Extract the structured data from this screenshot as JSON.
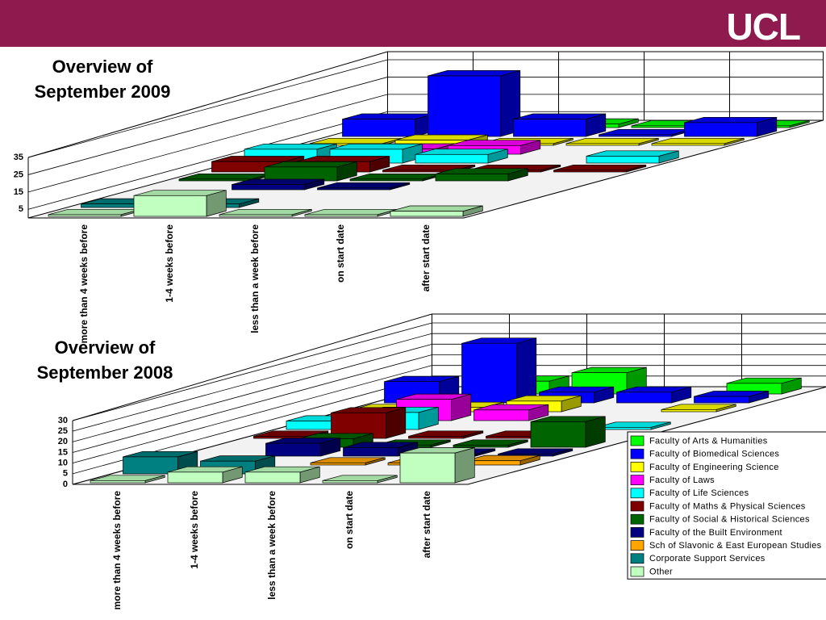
{
  "header": {
    "logo": "UCL"
  },
  "chart_data": [
    {
      "type": "bar3d",
      "title": "Overview of September 2009",
      "categories": [
        "more than 4 weeks before",
        "1-4 weeks before",
        "less than a week before",
        "on start date",
        "after start date"
      ],
      "ylim": [
        0,
        35
      ],
      "yticks": [
        5,
        15,
        25,
        35
      ],
      "series": [
        {
          "name": "Faculty of Arts & Humanities",
          "color": "#00ff00",
          "values": [
            1,
            3,
            2,
            1,
            1
          ]
        },
        {
          "name": "Faculty of Biomedical Sciences",
          "color": "#0000ff",
          "values": [
            10,
            35,
            10,
            1,
            8
          ]
        },
        {
          "name": "Faculty of Engineering Science",
          "color": "#ffff00",
          "values": [
            1,
            3,
            1,
            1,
            1
          ]
        },
        {
          "name": "Faculty of Laws",
          "color": "#ff00ff",
          "values": [
            0,
            3,
            5,
            0,
            0
          ]
        },
        {
          "name": "Faculty of Life Sciences",
          "color": "#00ffff",
          "values": [
            8,
            8,
            5,
            0,
            4
          ]
        },
        {
          "name": "Faculty of Maths & Physical Sciences",
          "color": "#800000",
          "values": [
            6,
            6,
            1,
            1,
            1
          ]
        },
        {
          "name": "Faculty of Social & Historical Sciences",
          "color": "#006400",
          "values": [
            1,
            8,
            1,
            4,
            0
          ]
        },
        {
          "name": "Faculty of the Built Environment",
          "color": "#000080",
          "values": [
            0,
            3,
            1,
            0,
            0
          ]
        },
        {
          "name": "Sch of Slavonic & East European Studies",
          "color": "#ffa500",
          "values": [
            0,
            0,
            0,
            0,
            0
          ]
        },
        {
          "name": "Corporate Support Services",
          "color": "#008080",
          "values": [
            2,
            2,
            0,
            0,
            0
          ]
        },
        {
          "name": "Other",
          "color": "#c0ffc0",
          "values": [
            1,
            12,
            1,
            1,
            3
          ]
        }
      ]
    },
    {
      "type": "bar3d",
      "title": "Overview of September 2008",
      "categories": [
        "more than 4 weeks before",
        "1-4 weeks before",
        "less than a week before",
        "on start date",
        "after start date"
      ],
      "ylim": [
        0,
        30
      ],
      "yticks": [
        0,
        5,
        10,
        15,
        20,
        25,
        30
      ],
      "series": [
        {
          "name": "Faculty of Arts & Humanities",
          "color": "#00ff00",
          "values": [
            0,
            6,
            10,
            0,
            5
          ]
        },
        {
          "name": "Faculty of Biomedical Sciences",
          "color": "#0000ff",
          "values": [
            10,
            28,
            5,
            5,
            3
          ]
        },
        {
          "name": "Faculty of Engineering Science",
          "color": "#ffff00",
          "values": [
            1,
            2,
            5,
            0,
            1
          ]
        },
        {
          "name": "Faculty of Laws",
          "color": "#ff00ff",
          "values": [
            0,
            10,
            5,
            0,
            0
          ]
        },
        {
          "name": "Faculty of Life Sciences",
          "color": "#00ffff",
          "values": [
            4,
            8,
            0,
            0,
            1
          ]
        },
        {
          "name": "Faculty of Maths & Physical Sciences",
          "color": "#800000",
          "values": [
            1,
            12,
            1,
            1,
            0
          ]
        },
        {
          "name": "Faculty of Social & Historical Sciences",
          "color": "#006400",
          "values": [
            0,
            4,
            1,
            1,
            12
          ]
        },
        {
          "name": "Faculty of the Built Environment",
          "color": "#000080",
          "values": [
            0,
            6,
            4,
            1,
            1
          ]
        },
        {
          "name": "Sch of Slavonic & East European Studies",
          "color": "#ffa500",
          "values": [
            0,
            0,
            1,
            1,
            2
          ]
        },
        {
          "name": "Corporate Support Services",
          "color": "#008080",
          "values": [
            8,
            6,
            0,
            0,
            0
          ]
        },
        {
          "name": "Other",
          "color": "#c0ffc0",
          "values": [
            1,
            5,
            5,
            1,
            14
          ]
        }
      ]
    }
  ]
}
